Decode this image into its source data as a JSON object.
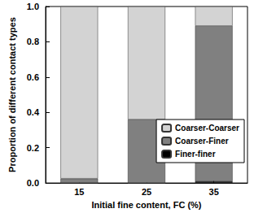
{
  "chart_data": {
    "type": "bar",
    "stacked": true,
    "categories": [
      "15",
      "25",
      "35"
    ],
    "x_label": "Initial fine content, FC (%)",
    "y_label": "Proportion of different contact types",
    "ylim": [
      0,
      1
    ],
    "yticks": [
      {
        "value": 0,
        "label": "0.0"
      },
      0.2,
      0.4,
      0.6,
      0.8,
      {
        "value": 1,
        "label": "1.0"
      }
    ],
    "legend": "lower right",
    "series": [
      {
        "name": "Finer-finer",
        "color": "#000000",
        "values": [
          0,
          0,
          0.01
        ]
      },
      {
        "name": "Coarser-Finer",
        "color": "#808080",
        "values": [
          0.025,
          0.36,
          0.88
        ]
      },
      {
        "name": "Coarser-Coarser",
        "color": "#d3d3d3",
        "values": [
          0.975,
          0.64,
          0.11
        ]
      }
    ]
  }
}
